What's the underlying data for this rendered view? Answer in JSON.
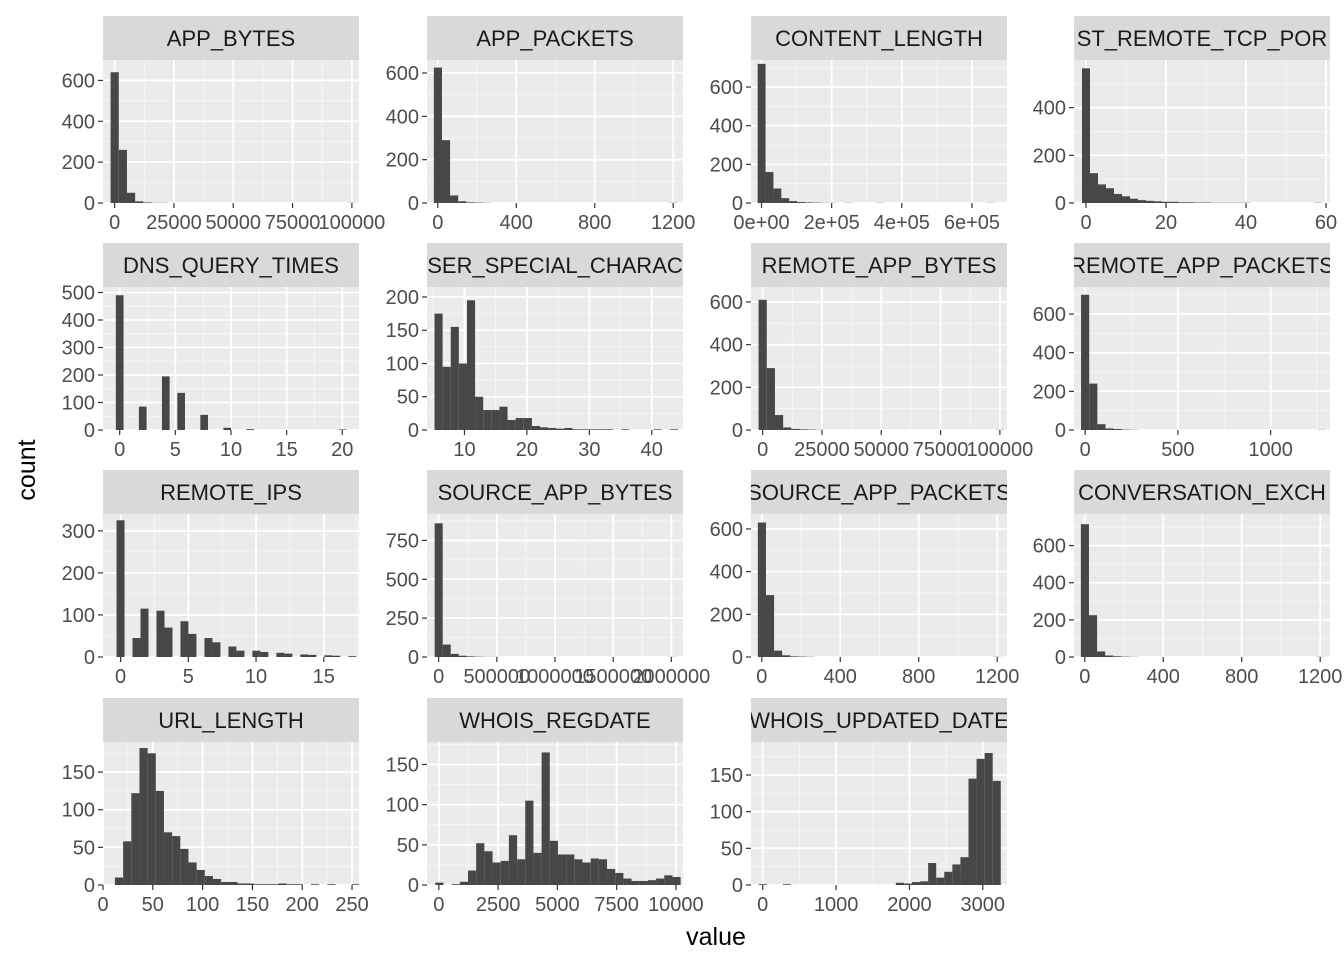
{
  "axis": {
    "xlabel": "value",
    "ylabel": "count"
  },
  "colors": {
    "panel": "#ebebeb",
    "grid_major": "#ffffff",
    "strip": "#d9d9d9",
    "bar": "#474747",
    "tick": "#333333"
  },
  "chart_data": {
    "type": "bar",
    "layout": "facet-wrap-4-columns",
    "grid": true,
    "panels": [
      {
        "name": "APP_BYTES",
        "xlim": [
          -4900,
          103000
        ],
        "ylim": [
          0,
          700
        ],
        "xticks": [
          0,
          25000,
          50000,
          75000,
          100000
        ],
        "xtick_labels": [
          "0",
          "25000",
          "50000",
          "75000",
          "100000"
        ],
        "yticks": [
          0,
          200,
          400,
          600
        ],
        "ytick_labels": [
          "0",
          "200",
          "400",
          "600"
        ],
        "bin_start": -1700,
        "bin_width": 3450,
        "counts": [
          640,
          260,
          50,
          8,
          3,
          1,
          1,
          0,
          0,
          0,
          0,
          0,
          0,
          0,
          0,
          0,
          0,
          0,
          0,
          0,
          0,
          0,
          0,
          0,
          0,
          0,
          0,
          0,
          0,
          1
        ]
      },
      {
        "name": "APP_PACKETS",
        "xlim": [
          -55,
          1250
        ],
        "ylim": [
          0,
          660
        ],
        "xticks": [
          0,
          400,
          800,
          1200
        ],
        "xtick_labels": [
          "0",
          "400",
          "800",
          "1200"
        ],
        "yticks": [
          0,
          200,
          400,
          600
        ],
        "ytick_labels": [
          "0",
          "200",
          "400",
          "600"
        ],
        "bin_start": -20,
        "bin_width": 41.3,
        "counts": [
          625,
          290,
          35,
          8,
          3,
          2,
          1,
          0,
          0,
          0,
          0,
          0,
          0,
          0,
          0,
          0,
          0,
          0,
          0,
          0,
          0,
          0,
          0,
          0,
          0,
          0,
          0,
          0,
          0,
          1
        ]
      },
      {
        "name": "CONTENT_LENGTH",
        "xlim": [
          -30000,
          700000
        ],
        "ylim": [
          0,
          740
        ],
        "xticks": [
          0,
          200000,
          400000,
          600000
        ],
        "xtick_labels": [
          "0e+00",
          "2e+05",
          "4e+05",
          "6e+05"
        ],
        "yticks": [
          0,
          200,
          400,
          600
        ],
        "ytick_labels": [
          "0",
          "200",
          "400",
          "600"
        ],
        "bin_start": -11000,
        "bin_width": 22500,
        "counts": [
          720,
          160,
          75,
          25,
          10,
          5,
          3,
          2,
          1,
          1,
          0,
          1,
          0,
          0,
          0,
          1,
          0,
          0,
          0,
          0,
          0,
          0,
          0,
          0,
          0,
          0,
          0,
          0,
          0,
          1
        ]
      },
      {
        "name": "ST_REMOTE_TCP_POR",
        "xlim": [
          -3,
          61
        ],
        "ylim": [
          0,
          600
        ],
        "xticks": [
          0,
          20,
          40,
          60
        ],
        "xtick_labels": [
          "0",
          "20",
          "40",
          "60"
        ],
        "yticks": [
          0,
          200,
          400
        ],
        "ytick_labels": [
          "0",
          "200",
          "400"
        ],
        "bin_start": -1,
        "bin_width": 2,
        "counts": [
          565,
          125,
          78,
          62,
          38,
          28,
          18,
          12,
          9,
          7,
          5,
          5,
          3,
          3,
          2,
          2,
          1,
          1,
          1,
          1,
          1,
          0,
          0,
          0,
          0,
          0,
          0,
          0,
          0,
          1
        ]
      },
      {
        "name": "DNS_QUERY_TIMES",
        "xlim": [
          -1.5,
          21.5
        ],
        "ylim": [
          0,
          520
        ],
        "xticks": [
          0,
          5,
          10,
          15,
          20
        ],
        "xtick_labels": [
          "0",
          "5",
          "10",
          "15",
          "20"
        ],
        "yticks": [
          0,
          100,
          200,
          300,
          400,
          500
        ],
        "ytick_labels": [
          "0",
          "100",
          "200",
          "300",
          "400",
          "500"
        ],
        "bin_start": -0.345,
        "bin_width": 0.69,
        "counts": [
          490,
          0,
          0,
          85,
          0,
          0,
          195,
          0,
          135,
          0,
          0,
          55,
          0,
          0,
          8,
          0,
          0,
          3,
          0,
          0,
          0,
          0,
          0,
          0,
          0,
          0,
          0,
          0,
          0,
          2
        ]
      },
      {
        "name": "SER_SPECIAL_CHARAC",
        "xlim": [
          4,
          45
        ],
        "ylim": [
          0,
          215
        ],
        "xticks": [
          10,
          20,
          30,
          40
        ],
        "xtick_labels": [
          "10",
          "20",
          "30",
          "40"
        ],
        "yticks": [
          0,
          50,
          100,
          150,
          200
        ],
        "ytick_labels": [
          "0",
          "50",
          "100",
          "150",
          "200"
        ],
        "bin_start": 5.2,
        "bin_width": 1.3,
        "counts": [
          175,
          95,
          155,
          100,
          195,
          50,
          30,
          30,
          35,
          15,
          18,
          18,
          6,
          4,
          3,
          2,
          3,
          1,
          1,
          1,
          1,
          1,
          0,
          1,
          0,
          0,
          0,
          1,
          0,
          1
        ]
      },
      {
        "name": "REMOTE_APP_BYTES",
        "xlim": [
          -4900,
          103000
        ],
        "ylim": [
          0,
          670
        ],
        "xticks": [
          0,
          25000,
          50000,
          75000,
          100000
        ],
        "xtick_labels": [
          "0",
          "25000",
          "50000",
          "75000",
          "100000"
        ],
        "yticks": [
          0,
          200,
          400,
          600
        ],
        "ytick_labels": [
          "0",
          "200",
          "400",
          "600"
        ],
        "bin_start": -1700,
        "bin_width": 3450,
        "counts": [
          610,
          290,
          70,
          12,
          5,
          3,
          2,
          1,
          0,
          0,
          0,
          0,
          0,
          0,
          0,
          0,
          0,
          0,
          0,
          0,
          0,
          0,
          0,
          0,
          0,
          0,
          0,
          0,
          0,
          1
        ]
      },
      {
        "name": "REMOTE_APP_PACKETS",
        "xlim": [
          -60,
          1320
        ],
        "ylim": [
          0,
          740
        ],
        "xticks": [
          0,
          500,
          1000
        ],
        "xtick_labels": [
          "0",
          "500",
          "1000"
        ],
        "yticks": [
          0,
          200,
          400,
          600
        ],
        "ytick_labels": [
          "0",
          "200",
          "400",
          "600"
        ],
        "bin_start": -22,
        "bin_width": 44,
        "counts": [
          700,
          240,
          30,
          8,
          5,
          2,
          1,
          0,
          0,
          0,
          0,
          0,
          0,
          0,
          0,
          0,
          0,
          0,
          0,
          0,
          0,
          0,
          0,
          0,
          0,
          0,
          0,
          0,
          0,
          1
        ]
      },
      {
        "name": "REMOTE_IPS",
        "xlim": [
          -1.3,
          17.6
        ],
        "ylim": [
          0,
          340
        ],
        "xticks": [
          0,
          5,
          10,
          15
        ],
        "xtick_labels": [
          "0",
          "5",
          "10",
          "15"
        ],
        "yticks": [
          0,
          100,
          200,
          300
        ],
        "ytick_labels": [
          "0",
          "100",
          "200",
          "300"
        ],
        "bin_start": -0.3,
        "bin_width": 0.59,
        "counts": [
          325,
          0,
          45,
          115,
          0,
          110,
          70,
          0,
          85,
          55,
          0,
          45,
          35,
          0,
          25,
          15,
          0,
          15,
          12,
          0,
          10,
          8,
          0,
          6,
          5,
          0,
          4,
          3,
          0,
          2
        ]
      },
      {
        "name": "SOURCE_APP_BYTES",
        "xlim": [
          -100000,
          2100000
        ],
        "ylim": [
          0,
          920
        ],
        "xticks": [
          0,
          500000,
          1000000,
          1500000,
          2000000
        ],
        "xtick_labels": [
          "0",
          "500000",
          "1000000",
          "1500000",
          "2000000"
        ],
        "yticks": [
          0,
          250,
          500,
          750
        ],
        "ytick_labels": [
          "0",
          "250",
          "500",
          "750"
        ],
        "bin_start": -34000,
        "bin_width": 69000,
        "counts": [
          860,
          80,
          20,
          8,
          4,
          2,
          1,
          1,
          0,
          0,
          0,
          0,
          0,
          0,
          0,
          0,
          0,
          0,
          0,
          0,
          0,
          0,
          0,
          0,
          0,
          0,
          0,
          0,
          0,
          1
        ]
      },
      {
        "name": "SOURCE_APP_PACKETS",
        "xlim": [
          -55,
          1250
        ],
        "ylim": [
          0,
          670
        ],
        "xticks": [
          0,
          400,
          800,
          1200
        ],
        "xtick_labels": [
          "0",
          "400",
          "800",
          "1200"
        ],
        "yticks": [
          0,
          200,
          400,
          600
        ],
        "ytick_labels": [
          "0",
          "200",
          "400",
          "600"
        ],
        "bin_start": -20,
        "bin_width": 41.3,
        "counts": [
          630,
          290,
          30,
          8,
          3,
          2,
          1,
          0,
          0,
          0,
          0,
          0,
          0,
          0,
          0,
          0,
          0,
          0,
          0,
          0,
          0,
          0,
          0,
          0,
          0,
          0,
          0,
          0,
          0,
          1
        ]
      },
      {
        "name": "CONVERSATION_EXCH",
        "xlim": [
          -55,
          1250
        ],
        "ylim": [
          0,
          770
        ],
        "xticks": [
          0,
          400,
          800,
          1200
        ],
        "xtick_labels": [
          "0",
          "400",
          "800",
          "1200"
        ],
        "yticks": [
          0,
          200,
          400,
          600
        ],
        "ytick_labels": [
          "0",
          "200",
          "400",
          "600"
        ],
        "bin_start": -20,
        "bin_width": 41.3,
        "counts": [
          715,
          225,
          30,
          8,
          4,
          2,
          1,
          0,
          0,
          0,
          0,
          0,
          0,
          0,
          0,
          0,
          0,
          0,
          0,
          0,
          0,
          0,
          0,
          0,
          0,
          0,
          0,
          0,
          0,
          1
        ]
      },
      {
        "name": "URL_LENGTH",
        "xlim": [
          0,
          257
        ],
        "ylim": [
          0,
          190
        ],
        "xticks": [
          0,
          50,
          100,
          150,
          200,
          250
        ],
        "xtick_labels": [
          "0",
          "50",
          "100",
          "150",
          "200",
          "250"
        ],
        "yticks": [
          0,
          50,
          100,
          150
        ],
        "ytick_labels": [
          "0",
          "50",
          "100",
          "150"
        ],
        "bin_start": 12,
        "bin_width": 8.2,
        "counts": [
          10,
          58,
          122,
          182,
          175,
          125,
          70,
          65,
          48,
          30,
          20,
          12,
          8,
          4,
          4,
          2,
          2,
          1,
          1,
          1,
          2,
          1,
          1,
          0,
          1,
          0,
          1,
          0,
          0,
          1
        ]
      },
      {
        "name": "WHOIS_REGDATE",
        "xlim": [
          -500,
          10300
        ],
        "ylim": [
          0,
          178
        ],
        "xticks": [
          0,
          2500,
          5000,
          7500,
          10000
        ],
        "xtick_labels": [
          "0",
          "2500",
          "5000",
          "7500",
          "10000"
        ],
        "yticks": [
          0,
          50,
          100,
          150
        ],
        "ytick_labels": [
          "0",
          "50",
          "100",
          "150"
        ],
        "bin_start": -150,
        "bin_width": 345,
        "counts": [
          3,
          0,
          1,
          4,
          18,
          52,
          42,
          28,
          30,
          62,
          32,
          105,
          40,
          165,
          55,
          38,
          38,
          32,
          28,
          33,
          32,
          20,
          15,
          8,
          5,
          5,
          6,
          8,
          12,
          10
        ]
      },
      {
        "name": "WHOIS_UPDATED_DATE",
        "xlim": [
          -160,
          3330
        ],
        "ylim": [
          0,
          195
        ],
        "xticks": [
          0,
          1000,
          2000,
          3000
        ],
        "xtick_labels": [
          "0",
          "1000",
          "2000",
          "3000"
        ],
        "yticks": [
          0,
          50,
          100,
          150
        ],
        "ytick_labels": [
          "0",
          "50",
          "100",
          "150"
        ],
        "bin_start": -55,
        "bin_width": 110,
        "counts": [
          1,
          0,
          0,
          1,
          0,
          0,
          0,
          0,
          0,
          0,
          0,
          0,
          0,
          0,
          0,
          0,
          0,
          3,
          2,
          4,
          5,
          30,
          10,
          18,
          28,
          38,
          145,
          172,
          180,
          142
        ]
      }
    ]
  }
}
